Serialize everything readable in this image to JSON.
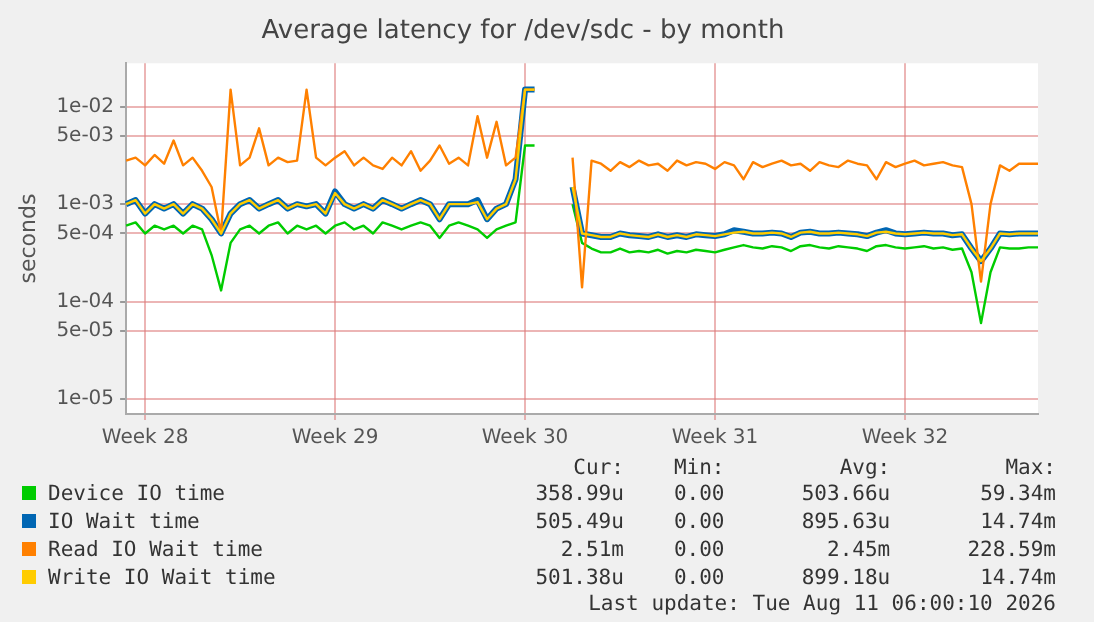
{
  "chart_data": {
    "type": "line",
    "title": "Average latency for /dev/sdc - by month",
    "ylabel": "seconds",
    "log": "y",
    "grid": true,
    "legend": "bottom",
    "marker": "none",
    "line_style": "solid",
    "ylim": [
      7e-06,
      0.028
    ],
    "yticks": [
      {
        "value": 0.01,
        "label": "1e-02"
      },
      {
        "value": 0.005,
        "label": "5e-03"
      },
      {
        "value": 0.001,
        "label": "1e-03"
      },
      {
        "value": 0.0005,
        "label": "5e-04"
      },
      {
        "value": 0.0001,
        "label": "1e-04"
      },
      {
        "value": 5e-05,
        "label": "5e-05"
      },
      {
        "value": 1e-05,
        "label": "1e-05"
      }
    ],
    "categories": [
      null,
      null,
      "Week 28",
      null,
      null,
      null,
      null,
      null,
      null,
      null,
      null,
      null,
      null,
      null,
      null,
      null,
      null,
      null,
      null,
      null,
      null,
      null,
      "Week 29",
      null,
      null,
      null,
      null,
      null,
      null,
      null,
      null,
      null,
      null,
      null,
      null,
      null,
      null,
      null,
      null,
      null,
      null,
      null,
      "Week 30",
      null,
      null,
      null,
      null,
      null,
      null,
      null,
      null,
      null,
      null,
      null,
      null,
      null,
      null,
      null,
      null,
      null,
      null,
      null,
      "Week 31",
      null,
      null,
      null,
      null,
      null,
      null,
      null,
      null,
      null,
      null,
      null,
      null,
      null,
      null,
      null,
      null,
      null,
      null,
      null,
      "Week 32",
      null,
      null,
      null,
      null,
      null,
      null,
      null,
      null,
      null,
      null,
      null,
      null,
      null,
      null
    ],
    "series": [
      {
        "name": "Device IO time",
        "color": "#00cc00",
        "values": [
          0.0006,
          0.00065,
          0.0005,
          0.0006,
          0.00055,
          0.0006,
          0.0005,
          0.0006,
          0.00055,
          0.0003,
          0.00013,
          0.0004,
          0.00055,
          0.0006,
          0.0005,
          0.0006,
          0.00065,
          0.0005,
          0.0006,
          0.00055,
          0.0006,
          0.0005,
          0.0006,
          0.00065,
          0.00055,
          0.0006,
          0.0005,
          0.00065,
          0.0006,
          0.00055,
          0.0006,
          0.00065,
          0.0006,
          0.00045,
          0.0006,
          0.00065,
          0.0006,
          0.00055,
          0.00045,
          0.00055,
          0.0006,
          0.00065,
          0.004,
          0.004,
          null,
          null,
          null,
          0.001,
          0.0004,
          0.00035,
          0.00032,
          0.00032,
          0.00035,
          0.00032,
          0.00033,
          0.00032,
          0.00034,
          0.00031,
          0.00033,
          0.00032,
          0.00034,
          0.00033,
          0.00032,
          0.00034,
          0.00036,
          0.00038,
          0.00036,
          0.00035,
          0.00037,
          0.00036,
          0.00033,
          0.00037,
          0.00038,
          0.00036,
          0.00035,
          0.00037,
          0.00036,
          0.00035,
          0.00033,
          0.00037,
          0.00038,
          0.00036,
          0.00035,
          0.00036,
          0.00037,
          0.00035,
          0.00036,
          0.00034,
          0.00035,
          0.0002,
          6e-05,
          0.0002,
          0.00036,
          0.00035,
          0.00035,
          0.00036,
          0.00036
        ]
      },
      {
        "name": "IO Wait time",
        "color": "#0066b3",
        "values": [
          0.001,
          0.0011,
          0.0008,
          0.001,
          0.0009,
          0.001,
          0.0008,
          0.001,
          0.0009,
          0.0007,
          0.0005,
          0.0008,
          0.001,
          0.0011,
          0.0009,
          0.001,
          0.0011,
          0.0009,
          0.001,
          0.00095,
          0.001,
          0.0008,
          0.00135,
          0.001,
          0.0009,
          0.001,
          0.0009,
          0.0011,
          0.001,
          0.0009,
          0.001,
          0.0011,
          0.001,
          0.0007,
          0.001,
          0.001,
          0.001,
          0.0011,
          0.0007,
          0.0009,
          0.001,
          0.0018,
          0.015,
          0.015,
          null,
          null,
          null,
          0.0015,
          0.0005,
          0.00048,
          0.00046,
          0.00046,
          0.0005,
          0.00048,
          0.00047,
          0.00046,
          0.00049,
          0.00046,
          0.00048,
          0.00046,
          0.00049,
          0.00048,
          0.00047,
          0.00049,
          0.00054,
          0.00052,
          0.0005,
          0.0005,
          0.00051,
          0.0005,
          0.00046,
          0.00051,
          0.00052,
          0.0005,
          0.0005,
          0.00051,
          0.0005,
          0.00049,
          0.00047,
          0.00051,
          0.00054,
          0.0005,
          0.00049,
          0.0005,
          0.00051,
          0.0005,
          0.0005,
          0.00048,
          0.00049,
          0.00035,
          0.00026,
          0.00035,
          0.0005,
          0.00049,
          0.0005,
          0.0005,
          0.0005
        ]
      },
      {
        "name": "Read IO Wait time",
        "color": "#ff8000",
        "values": [
          0.0028,
          0.003,
          0.0025,
          0.0032,
          0.0026,
          0.0045,
          0.0025,
          0.003,
          0.0022,
          0.0015,
          0.0005,
          0.015,
          0.0025,
          0.003,
          0.006,
          0.0025,
          0.003,
          0.0027,
          0.0028,
          0.015,
          0.003,
          0.0025,
          0.003,
          0.0035,
          0.0025,
          0.003,
          0.0025,
          0.0023,
          0.003,
          0.0025,
          0.0035,
          0.0022,
          0.0028,
          0.004,
          0.0026,
          0.003,
          0.0025,
          0.008,
          0.003,
          0.007,
          0.0025,
          0.003,
          0.015,
          0.015,
          null,
          null,
          null,
          0.003,
          0.00014,
          0.0028,
          0.0026,
          0.0022,
          0.0027,
          0.0024,
          0.0028,
          0.0025,
          0.0026,
          0.0022,
          0.0028,
          0.0025,
          0.0027,
          0.0026,
          0.0023,
          0.0027,
          0.0025,
          0.0018,
          0.0027,
          0.0024,
          0.0026,
          0.0028,
          0.0025,
          0.0026,
          0.0022,
          0.0027,
          0.0025,
          0.0024,
          0.0028,
          0.0026,
          0.0025,
          0.0018,
          0.0027,
          0.0024,
          0.0026,
          0.0028,
          0.0025,
          0.0026,
          0.0027,
          0.0025,
          0.0024,
          0.001,
          0.00016,
          0.001,
          0.0025,
          0.0022,
          0.0026,
          0.0026,
          0.0026
        ]
      },
      {
        "name": "Write IO Wait time",
        "color": "#ffcc00",
        "values": [
          0.001,
          0.0011,
          0.0008,
          0.001,
          0.0009,
          0.001,
          0.0008,
          0.001,
          0.0009,
          0.0007,
          0.0005,
          0.0008,
          0.001,
          0.0011,
          0.0009,
          0.001,
          0.0011,
          0.0009,
          0.001,
          0.00095,
          0.001,
          0.0008,
          0.0013,
          0.001,
          0.0009,
          0.001,
          0.0009,
          0.0011,
          0.001,
          0.0009,
          0.001,
          0.0011,
          0.001,
          0.0007,
          0.001,
          0.001,
          0.001,
          0.00105,
          0.0007,
          0.0009,
          0.001,
          0.0018,
          0.015,
          0.015,
          null,
          null,
          null,
          0.0015,
          0.0005,
          0.00048,
          0.00046,
          0.00046,
          0.0005,
          0.00048,
          0.00047,
          0.00046,
          0.00049,
          0.00046,
          0.00048,
          0.00046,
          0.00049,
          0.00048,
          0.00047,
          0.00049,
          0.00051,
          0.00052,
          0.0005,
          0.0005,
          0.00051,
          0.0005,
          0.00046,
          0.00051,
          0.00052,
          0.0005,
          0.0005,
          0.00051,
          0.0005,
          0.00049,
          0.00047,
          0.00051,
          0.00052,
          0.0005,
          0.00049,
          0.0005,
          0.00051,
          0.0005,
          0.0005,
          0.00048,
          0.00049,
          0.00035,
          0.00026,
          0.00035,
          0.0005,
          0.00049,
          0.0005,
          0.0005,
          0.0005
        ]
      }
    ],
    "annotations": [
      "Cur:",
      "Min:",
      "Avg:",
      "Max:",
      "358.99u",
      "0.00",
      "503.66u",
      "59.34m",
      "505.49u",
      "0.00",
      "895.63u",
      "14.74m",
      "2.51m",
      "0.00",
      "2.45m",
      "228.59m",
      "501.38u",
      "0.00",
      "899.18u",
      "14.74m",
      "Last update: Tue Aug 11 06:00:10 2026"
    ]
  }
}
